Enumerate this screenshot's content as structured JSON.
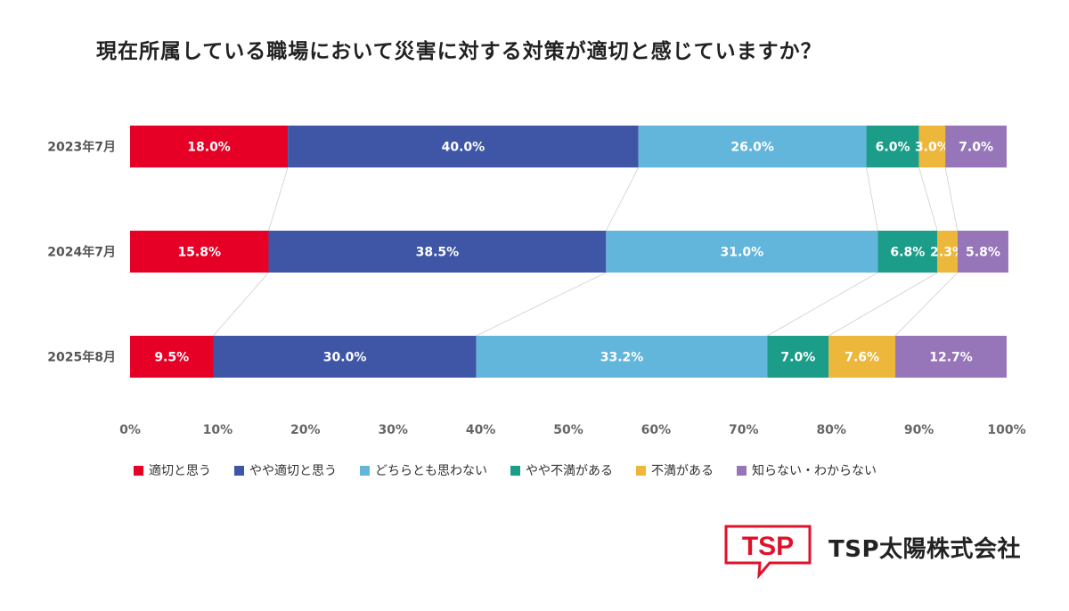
{
  "title": "現在所属している職場において災害に対する対策が適切と感じていますか？",
  "brand": {
    "logo_text": "TSP",
    "name": "TSP太陽株式会社",
    "accent": "#E0112B"
  },
  "chart_data": {
    "type": "bar",
    "orientation": "horizontal",
    "stacked": true,
    "categories": [
      "2023年7月",
      "2024年7月",
      "2025年8月"
    ],
    "series": [
      {
        "name": "適切と思う",
        "color": "#E60026",
        "values": [
          18.0,
          15.8,
          9.5
        ]
      },
      {
        "name": "やや適切と思う",
        "color": "#3F56A6",
        "values": [
          40.0,
          38.5,
          30.0
        ]
      },
      {
        "name": "どちらとも思わない",
        "color": "#62B5DB",
        "values": [
          26.0,
          31.0,
          33.2
        ]
      },
      {
        "name": "やや不満がある",
        "color": "#1C9D8A",
        "values": [
          6.0,
          6.8,
          7.0
        ]
      },
      {
        "name": "不満がある",
        "color": "#EDB73B",
        "values": [
          3.0,
          2.3,
          7.6
        ]
      },
      {
        "name": "知らない・わからない",
        "color": "#9676B8",
        "values": [
          7.0,
          5.8,
          12.7
        ]
      }
    ],
    "data_labels": [
      [
        "18.0%",
        "40.0%",
        "26.0%",
        "6.0%",
        "3.0%",
        "7.0%"
      ],
      [
        "15.8%",
        "38.5%",
        "31.0%",
        "6.8%",
        "2.3%",
        "5.8%"
      ],
      [
        "9.5%",
        "30.0%",
        "33.2%",
        "7.0%",
        "7.6%",
        "12.7%"
      ]
    ],
    "x_ticks": [
      "0%",
      "10%",
      "20%",
      "30%",
      "40%",
      "50%",
      "60%",
      "70%",
      "80%",
      "90%",
      "100%"
    ],
    "xlim": [
      0,
      100
    ],
    "legend_position": "bottom",
    "grid": false
  }
}
